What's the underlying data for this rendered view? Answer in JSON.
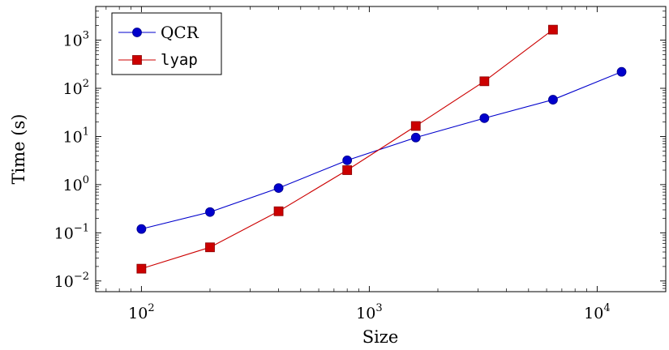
{
  "chart_data": {
    "type": "line",
    "xlabel": "Size",
    "ylabel": "Time (s)",
    "xscale": "log",
    "yscale": "log",
    "xlim": [
      63,
      20000
    ],
    "ylim": [
      0.006,
      5000
    ],
    "x_ticks": [
      {
        "base": "10",
        "exp": "2",
        "value": 100
      },
      {
        "base": "10",
        "exp": "3",
        "value": 1000
      },
      {
        "base": "10",
        "exp": "4",
        "value": 10000
      }
    ],
    "y_ticks": [
      {
        "base": "10",
        "exp": "−2",
        "value": 0.01
      },
      {
        "base": "10",
        "exp": "−1",
        "value": 0.1
      },
      {
        "base": "10",
        "exp": "0",
        "value": 1
      },
      {
        "base": "10",
        "exp": "1",
        "value": 10
      },
      {
        "base": "10",
        "exp": "2",
        "value": 100
      },
      {
        "base": "10",
        "exp": "3",
        "value": 1000
      }
    ],
    "legend_position": "top-left",
    "series": [
      {
        "name": "QCR",
        "color": "#0000cc",
        "marker": "circle",
        "x": [
          100,
          200,
          400,
          800,
          1600,
          3200,
          6400,
          12800
        ],
        "y": [
          0.12,
          0.27,
          0.85,
          3.2,
          9.5,
          24,
          58,
          220
        ]
      },
      {
        "name": "lyap",
        "color": "#cc0000",
        "marker": "square",
        "x": [
          100,
          200,
          400,
          800,
          1600,
          3200,
          6400
        ],
        "y": [
          0.018,
          0.05,
          0.28,
          2.0,
          16.5,
          140,
          1650
        ]
      }
    ]
  }
}
